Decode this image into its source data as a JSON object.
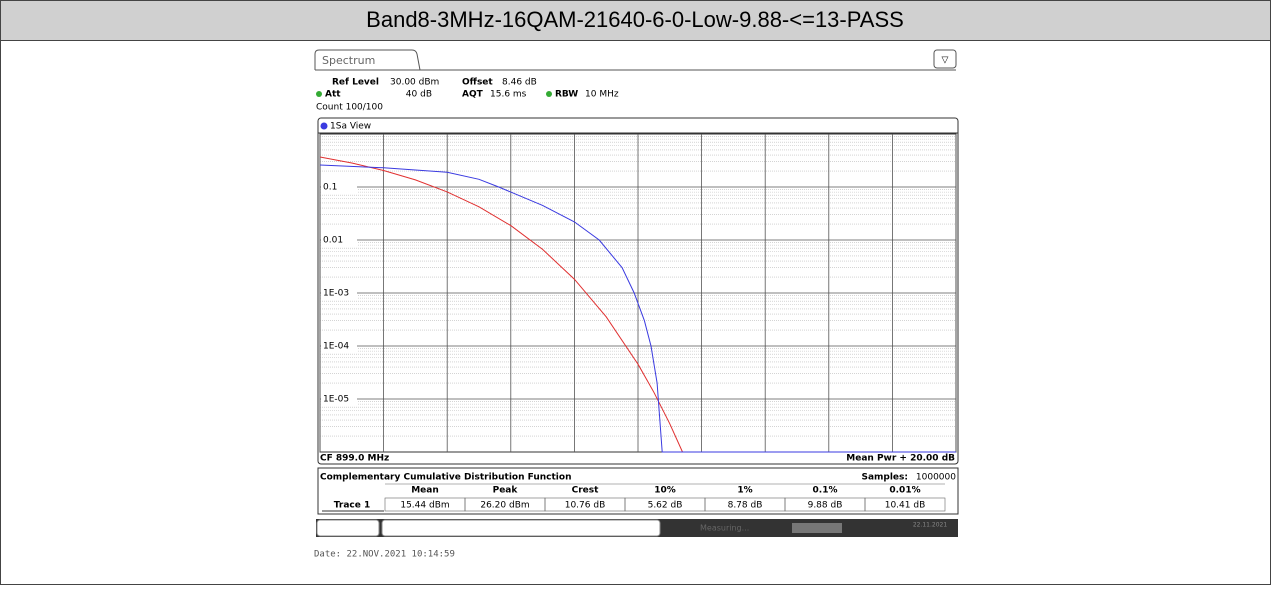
{
  "header": {
    "title": "Band8-3MHz-16QAM-21640-6-0-Low-9.88-<=13-PASS"
  },
  "instrument": {
    "tab": "Spectrum",
    "settings": [
      [
        "Ref Level",
        "30.00 dBm"
      ],
      [
        "Offset",
        "8.46 dB"
      ],
      [
        "Att",
        "40 dB"
      ],
      [
        "AQT",
        "15.6 ms"
      ],
      [
        "RBW",
        "10 MHz"
      ]
    ],
    "count": "Count 100/100",
    "view": "1Sa View",
    "footer_left": "CF 899.0 MHz",
    "footer_right": "Mean Pwr + 20.00 dB",
    "status": [
      "Measuring...",
      "22.11.2021"
    ]
  },
  "chart_data": {
    "type": "line",
    "log_y": true,
    "grid": true,
    "xlim": [
      0,
      20
    ],
    "ylim": [
      1e-06,
      1
    ],
    "xticks": [
      0,
      2,
      4,
      6,
      8,
      10,
      12,
      14,
      16,
      18,
      20
    ],
    "yticks": [
      0.1,
      0.01,
      {
        "value": 0.001,
        "label": "1E-03"
      },
      {
        "value": 0.0001,
        "label": "1E-04"
      },
      {
        "value": 1e-05,
        "label": "1E-05"
      }
    ],
    "series": [
      {
        "color": "#e03030",
        "x": [
          0,
          1,
          2,
          3,
          4,
          5,
          6,
          7,
          8,
          9,
          10,
          10.5,
          11,
          11.4
        ],
        "values": [
          0.368,
          0.284,
          0.205,
          0.136,
          0.081,
          0.0423,
          0.0187,
          0.00666,
          0.00182,
          0.000355,
          4.54e-05,
          1.34e-05,
          3.4e-06,
          1e-06
        ]
      },
      {
        "color": "#3a3ae0",
        "x": [
          0,
          2,
          4,
          5,
          5.62,
          6,
          7,
          8,
          8.78,
          9.5,
          9.88,
          10.2,
          10.41,
          10.6,
          10.76,
          20
        ],
        "values": [
          0.26,
          0.23,
          0.19,
          0.14,
          0.1,
          0.08,
          0.045,
          0.022,
          0.01,
          0.003,
          0.001,
          0.0003,
          0.0001,
          2e-05,
          1e-06,
          1e-06
        ]
      }
    ]
  },
  "table": {
    "title": "Complementary Cumulative Distribution Function",
    "samples_label": "Samples:",
    "samples": "1000000",
    "headers": [
      "Mean",
      "Peak",
      "Crest",
      "10%",
      "1%",
      "0.1%",
      "0.01%"
    ],
    "row_label": "Trace 1",
    "row": [
      "15.44 dBm",
      "26.20 dBm",
      "10.76 dB",
      "5.62 dB",
      "8.78 dB",
      "9.88 dB",
      "10.41 dB"
    ]
  },
  "date": "Date: 22.NOV.2021  10:14:59"
}
